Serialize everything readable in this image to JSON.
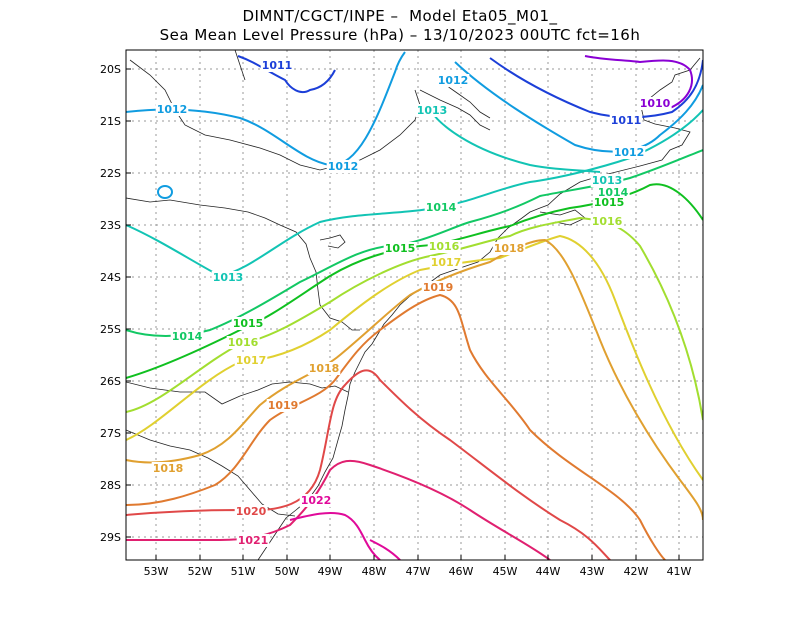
{
  "title_line1": "DIMNT/CGCT/INPE –  Model Eta05_M01_",
  "title_line2": "Sea Mean Level Pressure (hPa) – 13/10/2023 00UTC fct=16h",
  "lat_labels": [
    "20S",
    "21S",
    "22S",
    "23S",
    "24S",
    "25S",
    "26S",
    "27S",
    "28S",
    "29S"
  ],
  "lon_labels": [
    "53W",
    "52W",
    "51W",
    "50W",
    "49W",
    "48W",
    "47W",
    "46W",
    "45W",
    "44W",
    "43W",
    "42W",
    "41W"
  ],
  "colors": {
    "1010": "#8a00d4",
    "1011": "#1c3fd8",
    "1012": "#109ce0",
    "1013": "#12c4b4",
    "1014": "#12c864",
    "1015": "#10c020",
    "1016": "#a2de30",
    "1017": "#e0d030",
    "1018": "#e0a030",
    "1019": "#e07a30",
    "1020": "#e04848",
    "1021": "#e02070",
    "1022": "#e00a9a"
  },
  "contour_labels": [
    {
      "text": "1010",
      "level": "1010"
    },
    {
      "text": "1011",
      "level": "1011"
    },
    {
      "text": "1011",
      "level": "1011"
    },
    {
      "text": "1012",
      "level": "1012"
    },
    {
      "text": "1012",
      "level": "1012"
    },
    {
      "text": "1012",
      "level": "1012"
    },
    {
      "text": "1012",
      "level": "1012"
    },
    {
      "text": "1013",
      "level": "1013"
    },
    {
      "text": "1013",
      "level": "1013"
    },
    {
      "text": "1013",
      "level": "1013"
    },
    {
      "text": "1014",
      "level": "1014"
    },
    {
      "text": "1014",
      "level": "1014"
    },
    {
      "text": "1014",
      "level": "1014"
    },
    {
      "text": "1015",
      "level": "1015"
    },
    {
      "text": "1015",
      "level": "1015"
    },
    {
      "text": "1015",
      "level": "1015"
    },
    {
      "text": "1016",
      "level": "1016"
    },
    {
      "text": "1016",
      "level": "1016"
    },
    {
      "text": "1016",
      "level": "1016"
    },
    {
      "text": "1017",
      "level": "1017"
    },
    {
      "text": "1017",
      "level": "1017"
    },
    {
      "text": "1018",
      "level": "1018"
    },
    {
      "text": "1018",
      "level": "1018"
    },
    {
      "text": "1018",
      "level": "1018"
    },
    {
      "text": "1019",
      "level": "1019"
    },
    {
      "text": "1019",
      "level": "1019"
    },
    {
      "text": "1020",
      "level": "1020"
    },
    {
      "text": "1021",
      "level": "1021"
    },
    {
      "text": "1022",
      "level": "1022"
    }
  ]
}
